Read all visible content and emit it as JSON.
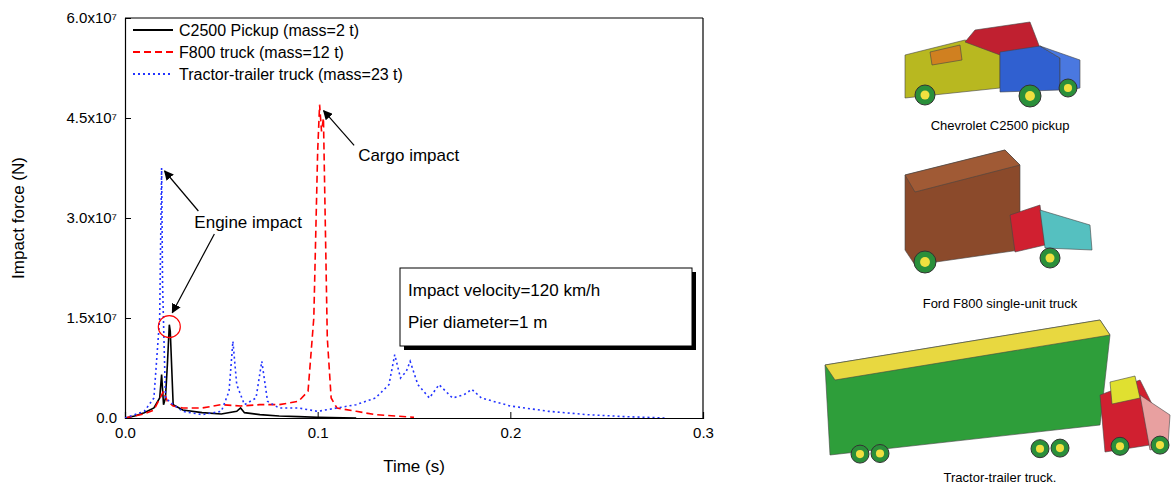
{
  "chart_data": {
    "type": "line",
    "x_label": "Time (s)",
    "y_label": "Impact force (N)",
    "xlim": [
      0,
      0.3
    ],
    "ylim": [
      0,
      60000000
    ],
    "xticks": [
      {
        "value": 0,
        "label": "0.0"
      },
      0.1,
      0.2,
      0.3
    ],
    "yticks": [
      {
        "value": 0,
        "label": "0.0"
      },
      {
        "value": 15000000,
        "label": "1.5x10⁷"
      },
      {
        "value": 30000000,
        "label": "3.0x10⁷"
      },
      {
        "value": 45000000,
        "label": "4.5x10⁷"
      },
      {
        "value": 60000000,
        "label": "6.0x10⁷"
      }
    ],
    "legend": "upper left",
    "series": [
      {
        "name": "C2500 Pickup (mass=2 t)",
        "color": "#000000",
        "line_style": "solid",
        "x": [
          0,
          0.005,
          0.01,
          0.015,
          0.018,
          0.019,
          0.02,
          0.021,
          0.022,
          0.023,
          0.0235,
          0.025,
          0.03,
          0.04,
          0.05,
          0.058,
          0.06,
          0.062,
          0.07,
          0.08,
          0.09,
          0.1,
          0.12
        ],
        "values": [
          0,
          300000,
          800000,
          1500000,
          3000000,
          6500000,
          2000000,
          3000000,
          8000000,
          14000000,
          13000000,
          2000000,
          1200000,
          800000,
          600000,
          1000000,
          1500000,
          800000,
          500000,
          300000,
          200000,
          100000,
          0
        ]
      },
      {
        "name": "F800 truck (mass=12 t)",
        "color": "#ff0000",
        "line_style": "dashed",
        "x": [
          0,
          0.01,
          0.015,
          0.02,
          0.022,
          0.025,
          0.03,
          0.04,
          0.05,
          0.06,
          0.07,
          0.08,
          0.09,
          0.095,
          0.098,
          0.1,
          0.101,
          0.102,
          0.103,
          0.105,
          0.107,
          0.11,
          0.12,
          0.13,
          0.15
        ],
        "values": [
          0,
          600000,
          1200000,
          4000000,
          2500000,
          1800000,
          1500000,
          1500000,
          2000000,
          1800000,
          2000000,
          2000000,
          2500000,
          4000000,
          15000000,
          40000000,
          47000000,
          43000000,
          45000000,
          12000000,
          3000000,
          1500000,
          1000000,
          500000,
          100000
        ]
      },
      {
        "name": "Tractor-trailer truck (mass=23 t)",
        "color": "#2233ff",
        "line_style": "dotted",
        "x": [
          0,
          0.01,
          0.015,
          0.018,
          0.019,
          0.0195,
          0.021,
          0.025,
          0.03,
          0.04,
          0.05,
          0.054,
          0.056,
          0.058,
          0.062,
          0.068,
          0.071,
          0.074,
          0.08,
          0.09,
          0.1,
          0.11,
          0.12,
          0.13,
          0.137,
          0.14,
          0.143,
          0.146,
          0.148,
          0.152,
          0.158,
          0.163,
          0.17,
          0.176,
          0.18,
          0.185,
          0.2,
          0.22,
          0.24,
          0.26,
          0.28
        ],
        "values": [
          0,
          1000000,
          3000000,
          15000000,
          37500000,
          20000000,
          3000000,
          2000000,
          1000000,
          500000,
          1000000,
          4000000,
          11500000,
          5000000,
          2000000,
          3000000,
          8500000,
          2500000,
          1500000,
          1500000,
          1000000,
          1500000,
          2000000,
          3000000,
          5000000,
          9500000,
          6000000,
          7000000,
          8500000,
          5000000,
          3000000,
          5000000,
          3000000,
          3500000,
          4300000,
          3000000,
          1800000,
          1000000,
          500000,
          200000,
          0
        ]
      }
    ],
    "annotations": [
      "Engine impact",
      "Cargo impact"
    ],
    "info_box": [
      "Impact velocity=120 km/h",
      "Pier diameter=1 m"
    ]
  },
  "vehicle_models": [
    {
      "caption": "Chevrolet C2500 pickup"
    },
    {
      "caption": "Ford F800 single-unit truck"
    },
    {
      "caption": "Tractor-trailer truck."
    }
  ]
}
